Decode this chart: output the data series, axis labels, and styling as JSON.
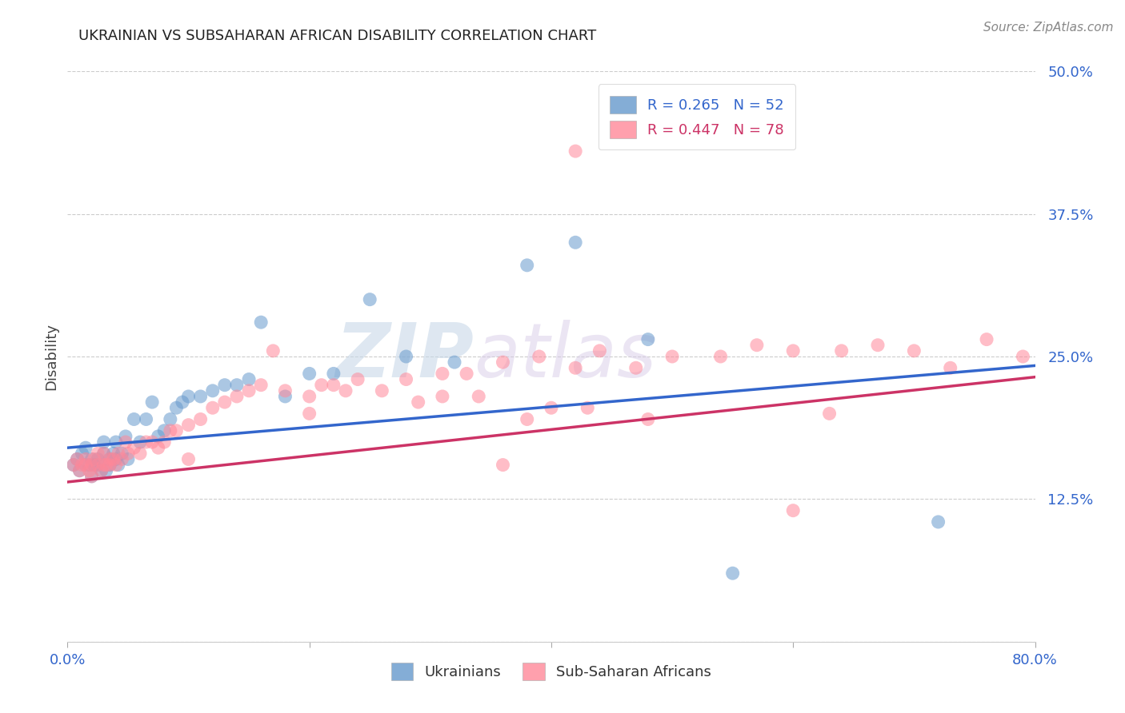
{
  "title": "UKRAINIAN VS SUBSAHARAN AFRICAN DISABILITY CORRELATION CHART",
  "source": "Source: ZipAtlas.com",
  "ylabel": "Disability",
  "xlim": [
    0.0,
    0.8
  ],
  "ylim": [
    0.0,
    0.5
  ],
  "yticks": [
    0.0,
    0.125,
    0.25,
    0.375,
    0.5
  ],
  "ytick_labels": [
    "",
    "12.5%",
    "25.0%",
    "37.5%",
    "50.0%"
  ],
  "xticks": [
    0.0,
    0.2,
    0.4,
    0.6,
    0.8
  ],
  "xtick_labels_show": [
    "0.0%",
    "80.0%"
  ],
  "blue_color": "#6699CC",
  "pink_color": "#FF8899",
  "blue_line_color": "#3366CC",
  "pink_line_color": "#CC3366",
  "legend_R_blue": "R = 0.265",
  "legend_N_blue": "N = 52",
  "legend_R_pink": "R = 0.447",
  "legend_N_pink": "N = 78",
  "watermark": "ZIPatlas",
  "blue_intercept": 0.17,
  "blue_slope": 0.09,
  "pink_intercept": 0.14,
  "pink_slope": 0.115,
  "blue_x": [
    0.005,
    0.008,
    0.01,
    0.012,
    0.015,
    0.015,
    0.018,
    0.02,
    0.02,
    0.022,
    0.025,
    0.025,
    0.028,
    0.03,
    0.03,
    0.032,
    0.035,
    0.035,
    0.038,
    0.04,
    0.04,
    0.042,
    0.045,
    0.048,
    0.05,
    0.055,
    0.06,
    0.065,
    0.07,
    0.075,
    0.08,
    0.085,
    0.09,
    0.095,
    0.1,
    0.11,
    0.12,
    0.13,
    0.14,
    0.15,
    0.16,
    0.18,
    0.2,
    0.22,
    0.25,
    0.28,
    0.32,
    0.38,
    0.42,
    0.48,
    0.55,
    0.72
  ],
  "blue_y": [
    0.155,
    0.16,
    0.15,
    0.165,
    0.155,
    0.17,
    0.155,
    0.16,
    0.145,
    0.155,
    0.16,
    0.155,
    0.15,
    0.165,
    0.175,
    0.15,
    0.16,
    0.155,
    0.165,
    0.16,
    0.175,
    0.155,
    0.165,
    0.18,
    0.16,
    0.195,
    0.175,
    0.195,
    0.21,
    0.18,
    0.185,
    0.195,
    0.205,
    0.21,
    0.215,
    0.215,
    0.22,
    0.225,
    0.225,
    0.23,
    0.28,
    0.215,
    0.235,
    0.235,
    0.3,
    0.25,
    0.245,
    0.33,
    0.35,
    0.265,
    0.06,
    0.105
  ],
  "pink_x": [
    0.005,
    0.008,
    0.01,
    0.012,
    0.015,
    0.015,
    0.018,
    0.02,
    0.02,
    0.022,
    0.025,
    0.025,
    0.028,
    0.03,
    0.03,
    0.032,
    0.035,
    0.035,
    0.038,
    0.04,
    0.042,
    0.045,
    0.048,
    0.05,
    0.055,
    0.06,
    0.065,
    0.07,
    0.075,
    0.08,
    0.085,
    0.09,
    0.1,
    0.11,
    0.12,
    0.13,
    0.14,
    0.15,
    0.16,
    0.17,
    0.18,
    0.2,
    0.21,
    0.22,
    0.23,
    0.24,
    0.26,
    0.28,
    0.31,
    0.33,
    0.36,
    0.39,
    0.42,
    0.44,
    0.47,
    0.5,
    0.54,
    0.57,
    0.6,
    0.64,
    0.67,
    0.7,
    0.73,
    0.76,
    0.79,
    0.38,
    0.4,
    0.43,
    0.48,
    0.42,
    0.29,
    0.31,
    0.34,
    0.36,
    0.6,
    0.63,
    0.1,
    0.2
  ],
  "pink_y": [
    0.155,
    0.16,
    0.15,
    0.155,
    0.16,
    0.155,
    0.15,
    0.155,
    0.145,
    0.16,
    0.155,
    0.165,
    0.15,
    0.155,
    0.165,
    0.155,
    0.16,
    0.155,
    0.16,
    0.155,
    0.165,
    0.16,
    0.175,
    0.165,
    0.17,
    0.165,
    0.175,
    0.175,
    0.17,
    0.175,
    0.185,
    0.185,
    0.19,
    0.195,
    0.205,
    0.21,
    0.215,
    0.22,
    0.225,
    0.255,
    0.22,
    0.215,
    0.225,
    0.225,
    0.22,
    0.23,
    0.22,
    0.23,
    0.235,
    0.235,
    0.245,
    0.25,
    0.24,
    0.255,
    0.24,
    0.25,
    0.25,
    0.26,
    0.255,
    0.255,
    0.26,
    0.255,
    0.24,
    0.265,
    0.25,
    0.195,
    0.205,
    0.205,
    0.195,
    0.43,
    0.21,
    0.215,
    0.215,
    0.155,
    0.115,
    0.2,
    0.16,
    0.2
  ]
}
